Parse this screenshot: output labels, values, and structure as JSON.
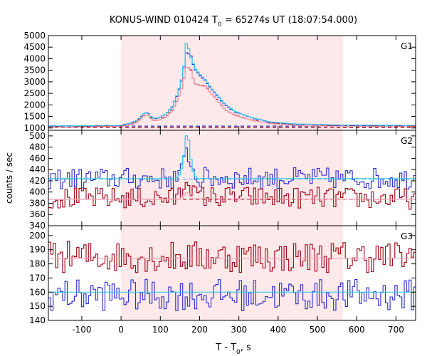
{
  "chart_data": {
    "type": "line",
    "title": "KONUS-WIND 010424 T",
    "title_sub": "0",
    "title_tail": " = 65274s UT (18:07:54.000)",
    "xlabel": "T - T",
    "xlabel_sub": "0",
    "xlabel_tail": ", s",
    "ylabel": "counts / sec",
    "xlim": [
      -185,
      750
    ],
    "xticks": [
      -100,
      0,
      100,
      200,
      300,
      400,
      500,
      600,
      700
    ],
    "shaded_interval": [
      0,
      565
    ],
    "colors": {
      "shade": "#fde8ea",
      "series_a": "#2a2ad0",
      "series_a_light": "#33c6ea",
      "series_b": "#a00012",
      "series_b_light": "#f2a3b3"
    },
    "panels": [
      {
        "name": "G1",
        "ylim": [
          900,
          5000
        ],
        "yticks": [
          1000,
          1500,
          2000,
          2500,
          3000,
          3500,
          4000,
          4500,
          5000
        ],
        "backgrounds": [
          {
            "series": "series_b",
            "value": 1020
          },
          {
            "series": "series_a",
            "value": 1080
          }
        ],
        "series": [
          {
            "color": "series_a",
            "noise": 12,
            "profile": [
              [
                -185,
                1080
              ],
              [
                0,
                1100
              ],
              [
                20,
                1180
              ],
              [
                40,
                1300
              ],
              [
                55,
                1560
              ],
              [
                62,
                1680
              ],
              [
                70,
                1630
              ],
              [
                80,
                1400
              ],
              [
                95,
                1430
              ],
              [
                115,
                1600
              ],
              [
                130,
                1900
              ],
              [
                145,
                2500
              ],
              [
                155,
                3100
              ],
              [
                162,
                3800
              ],
              [
                168,
                4500
              ],
              [
                172,
                4200
              ],
              [
                178,
                4100
              ],
              [
                183,
                3800
              ],
              [
                190,
                3500
              ],
              [
                200,
                3300
              ],
              [
                215,
                3050
              ],
              [
                230,
                2700
              ],
              [
                245,
                2400
              ],
              [
                265,
                2000
              ],
              [
                290,
                1700
              ],
              [
                330,
                1450
              ],
              [
                380,
                1250
              ],
              [
                450,
                1160
              ],
              [
                550,
                1120
              ],
              [
                750,
                1100
              ]
            ]
          },
          {
            "color": "series_a_light",
            "noise": 0,
            "profile": [
              [
                -185,
                1085
              ],
              [
                0,
                1110
              ],
              [
                20,
                1190
              ],
              [
                40,
                1310
              ],
              [
                55,
                1570
              ],
              [
                62,
                1690
              ],
              [
                70,
                1640
              ],
              [
                80,
                1410
              ],
              [
                95,
                1440
              ],
              [
                115,
                1610
              ],
              [
                130,
                1920
              ],
              [
                145,
                2520
              ],
              [
                155,
                3150
              ],
              [
                162,
                3900
              ],
              [
                166,
                4650
              ],
              [
                170,
                4600
              ],
              [
                176,
                4100
              ],
              [
                183,
                3850
              ],
              [
                190,
                3550
              ],
              [
                200,
                3340
              ],
              [
                215,
                3080
              ],
              [
                230,
                2720
              ],
              [
                245,
                2420
              ],
              [
                265,
                2020
              ],
              [
                290,
                1720
              ],
              [
                330,
                1460
              ],
              [
                380,
                1260
              ],
              [
                450,
                1170
              ],
              [
                550,
                1130
              ],
              [
                750,
                1110
              ]
            ]
          },
          {
            "color": "series_b",
            "noise": 12,
            "profile": [
              [
                -185,
                1040
              ],
              [
                0,
                1070
              ],
              [
                20,
                1130
              ],
              [
                40,
                1250
              ],
              [
                55,
                1480
              ],
              [
                62,
                1580
              ],
              [
                70,
                1540
              ],
              [
                80,
                1330
              ],
              [
                95,
                1340
              ],
              [
                115,
                1480
              ],
              [
                130,
                1750
              ],
              [
                145,
                2250
              ],
              [
                155,
                2750
              ],
              [
                162,
                3300
              ],
              [
                168,
                3800
              ],
              [
                172,
                3600
              ],
              [
                178,
                3500
              ],
              [
                183,
                3200
              ],
              [
                190,
                2900
              ],
              [
                200,
                2850
              ],
              [
                215,
                2800
              ],
              [
                230,
                2500
              ],
              [
                245,
                2200
              ],
              [
                265,
                1800
              ],
              [
                290,
                1550
              ],
              [
                330,
                1350
              ],
              [
                380,
                1200
              ],
              [
                450,
                1120
              ],
              [
                550,
                1080
              ],
              [
                750,
                1060
              ]
            ]
          },
          {
            "color": "series_b_light",
            "noise": 0,
            "profile": [
              [
                -185,
                1030
              ],
              [
                0,
                1060
              ],
              [
                20,
                1120
              ],
              [
                40,
                1240
              ],
              [
                55,
                1470
              ],
              [
                62,
                1570
              ],
              [
                70,
                1530
              ],
              [
                80,
                1320
              ],
              [
                95,
                1330
              ],
              [
                115,
                1470
              ],
              [
                130,
                1740
              ],
              [
                145,
                2240
              ],
              [
                155,
                2740
              ],
              [
                162,
                3290
              ],
              [
                168,
                3780
              ],
              [
                172,
                3590
              ],
              [
                178,
                3480
              ],
              [
                183,
                3190
              ],
              [
                190,
                2890
              ],
              [
                200,
                2840
              ],
              [
                215,
                2790
              ],
              [
                230,
                2490
              ],
              [
                245,
                2190
              ],
              [
                265,
                1790
              ],
              [
                290,
                1540
              ],
              [
                330,
                1340
              ],
              [
                380,
                1190
              ],
              [
                450,
                1110
              ],
              [
                550,
                1070
              ],
              [
                750,
                1050
              ]
            ]
          }
        ]
      },
      {
        "name": "G2",
        "ylim": [
          340,
          510
        ],
        "yticks": [
          340,
          360,
          380,
          400,
          420,
          440,
          460,
          480,
          500
        ],
        "backgrounds": [
          {
            "series": "series_b",
            "value": 387
          },
          {
            "series": "series_a_light",
            "value": 423
          }
        ],
        "series": [
          {
            "color": "series_a",
            "noise": 12,
            "profile": [
              [
                -185,
                424
              ],
              [
                140,
                424
              ],
              [
                155,
                435
              ],
              [
                162,
                455
              ],
              [
                166,
                470
              ],
              [
                170,
                460
              ],
              [
                176,
                470
              ],
              [
                182,
                440
              ],
              [
                190,
                425
              ],
              [
                750,
                424
              ]
            ]
          },
          {
            "color": "series_a_light",
            "noise": 0,
            "profile": [
              [
                -185,
                424
              ],
              [
                140,
                424
              ],
              [
                150,
                432
              ],
              [
                158,
                450
              ],
              [
                162,
                480
              ],
              [
                166,
                500
              ],
              [
                170,
                505
              ],
              [
                174,
                480
              ],
              [
                178,
                458
              ],
              [
                186,
                430
              ],
              [
                195,
                424
              ],
              [
                750,
                424
              ]
            ]
          },
          {
            "color": "series_b",
            "noise": 12,
            "profile": [
              [
                -185,
                389
              ],
              [
                140,
                389
              ],
              [
                155,
                400
              ],
              [
                162,
                418
              ],
              [
                168,
                430
              ],
              [
                174,
                420
              ],
              [
                180,
                410
              ],
              [
                190,
                392
              ],
              [
                750,
                388
              ]
            ]
          },
          {
            "color": "series_b_light",
            "noise": 0,
            "profile": [
              [
                -185,
                387
              ],
              [
                150,
                387
              ],
              [
                162,
                395
              ],
              [
                168,
                400
              ],
              [
                174,
                395
              ],
              [
                184,
                388
              ],
              [
                750,
                387
              ]
            ]
          }
        ]
      },
      {
        "name": "G3",
        "ylim": [
          140,
          207
        ],
        "yticks": [
          140,
          150,
          160,
          170,
          180,
          190,
          200
        ],
        "backgrounds": [],
        "series": [
          {
            "color": "series_b",
            "noise": 7,
            "profile": [
              [
                -185,
                185
              ],
              [
                750,
                185
              ]
            ]
          },
          {
            "color": "series_b_light",
            "noise": 0,
            "profile": [
              [
                -185,
                184
              ],
              [
                750,
                184
              ]
            ]
          },
          {
            "color": "series_a",
            "noise": 7,
            "profile": [
              [
                -185,
                158
              ],
              [
                750,
                158
              ]
            ]
          },
          {
            "color": "series_a_light",
            "noise": 0,
            "profile": [
              [
                -185,
                160
              ],
              [
                750,
                160
              ]
            ]
          }
        ]
      }
    ]
  }
}
